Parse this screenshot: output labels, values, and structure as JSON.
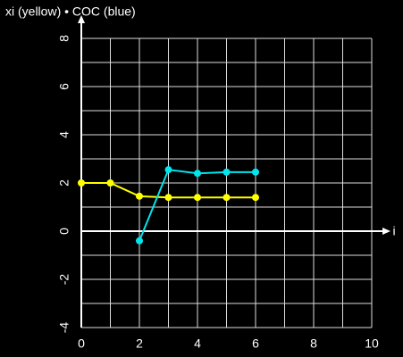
{
  "chart_data": {
    "type": "line",
    "title": "xi (yellow) • COC (blue)",
    "x_label": "i",
    "x": [
      0,
      1,
      2,
      3,
      4,
      5,
      6
    ],
    "series": [
      {
        "name": "xi",
        "color": "#ffff00",
        "values": [
          2,
          2,
          1.45,
          1.4,
          1.4,
          1.4,
          1.4
        ]
      },
      {
        "name": "COC",
        "color": "#00e5ee",
        "values": [
          null,
          null,
          -0.4,
          2.55,
          2.4,
          2.45,
          2.45
        ]
      }
    ],
    "xlim": [
      0,
      10
    ],
    "ylim": [
      -4,
      8
    ],
    "xticks": [
      0,
      2,
      4,
      6,
      8,
      10
    ],
    "yticks": [
      -4,
      -2,
      0,
      2,
      4,
      6,
      8
    ],
    "grid": true
  }
}
